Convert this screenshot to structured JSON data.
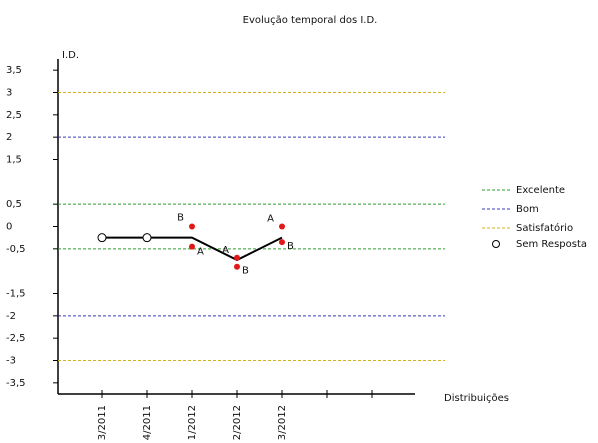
{
  "chart_data": {
    "type": "line",
    "title": "Evolução temporal dos I.D.",
    "y_label": "I.D.",
    "x_label": "Distribuições",
    "categories": [
      "3/2011",
      "4/2011",
      "1/2012",
      "2/2012",
      "3/2012",
      null,
      null
    ],
    "ylim": [
      -3.75,
      3.75
    ],
    "yticks": [
      {
        "value": 3.5,
        "label": "3,5"
      },
      3,
      {
        "value": 2.5,
        "label": "2,5"
      },
      2,
      {
        "value": 1.5,
        "label": "1,5"
      },
      {
        "value": 0.5,
        "label": "0,5"
      },
      0,
      {
        "value": -0.5,
        "label": "-0,5"
      },
      {
        "value": -1.5,
        "label": "-1,5"
      },
      -2,
      {
        "value": -2.5,
        "label": "-2,5"
      },
      -3,
      {
        "value": -3.5,
        "label": "-3,5"
      }
    ],
    "reference_lines": [
      {
        "name": "Excelente",
        "color": "#2e9e2e",
        "values": [
          0.5,
          -0.5
        ]
      },
      {
        "name": "Bom",
        "color": "#3a3ab8",
        "values": [
          2,
          -2
        ]
      },
      {
        "name": "Satisfatório",
        "color": "#d4b21c",
        "values": [
          3,
          -3
        ]
      }
    ],
    "series": [
      {
        "color": "#000000",
        "values": [
          -0.25,
          -0.25,
          -0.25,
          -0.75,
          -0.25,
          null,
          null
        ]
      },
      {
        "name": "A",
        "color": "#e01818",
        "marker": "dot",
        "values": [
          null,
          null,
          -0.45,
          -0.7,
          0,
          null,
          null
        ]
      },
      {
        "name": "B",
        "color": "#e01818",
        "marker": "dot",
        "values": [
          null,
          null,
          0,
          -0.9,
          -0.35,
          null,
          null
        ]
      },
      {
        "name": "Sem Resposta",
        "color": "#000000",
        "marker": "circle",
        "values": [
          -0.25,
          -0.25,
          null,
          null,
          null,
          null,
          null
        ]
      }
    ]
  }
}
